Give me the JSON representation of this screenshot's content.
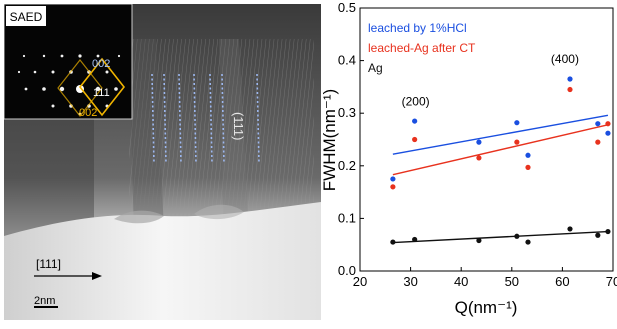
{
  "tem": {
    "saed_label": "SAED",
    "spot_top": "002",
    "spot_center": "111",
    "spot_bottom": "002",
    "plane_label": "(111)",
    "direction_label": "[111]",
    "scale_label": "2nm",
    "colors": {
      "saed_box": "#f0b400",
      "plane_lines": "#9db8f0",
      "spot_top": "#a9c4f5"
    }
  },
  "chart_data": {
    "type": "scatter",
    "xlabel": "Q(nm⁻¹)",
    "ylabel": "FWHM(nm⁻¹)",
    "xlim": [
      20,
      70
    ],
    "ylim": [
      0.0,
      0.5
    ],
    "xticks": [
      20,
      30,
      40,
      50,
      60,
      70
    ],
    "yticks": [
      0.0,
      0.1,
      0.2,
      0.3,
      0.4,
      0.5
    ],
    "ytick_labels": [
      "0.0",
      "0.1",
      "0.2",
      "0.3",
      "0.4",
      "0.5"
    ],
    "legend_position": "top-left",
    "grid": false,
    "series": [
      {
        "name": "leached by 1%HCl",
        "color": "#1a4fe0",
        "x": [
          26.5,
          30.8,
          43.5,
          51.0,
          53.2,
          61.5,
          67.0,
          69.0
        ],
        "y": [
          0.175,
          0.285,
          0.245,
          0.282,
          0.22,
          0.365,
          0.28,
          0.262
        ],
        "fit": [
          [
            26.5,
            0.222
          ],
          [
            69.0,
            0.296
          ]
        ]
      },
      {
        "name": "leached-Ag after CT",
        "color": "#e8321e",
        "x": [
          26.5,
          30.8,
          43.5,
          51.0,
          53.2,
          61.5,
          67.0,
          69.0
        ],
        "y": [
          0.16,
          0.25,
          0.215,
          0.245,
          0.197,
          0.345,
          0.245,
          0.28
        ],
        "fit": [
          [
            26.5,
            0.183
          ],
          [
            69.0,
            0.278
          ]
        ]
      },
      {
        "name": "Ag",
        "color": "#111111",
        "x": [
          26.5,
          30.8,
          43.5,
          51.0,
          53.2,
          61.5,
          67.0,
          69.0
        ],
        "y": [
          0.055,
          0.06,
          0.058,
          0.066,
          0.055,
          0.08,
          0.068,
          0.075
        ],
        "fit": [
          [
            26.5,
            0.054
          ],
          [
            69.0,
            0.075
          ]
        ]
      }
    ],
    "annotations": [
      {
        "text": "(200)",
        "x": 31.0,
        "y": 0.315
      },
      {
        "text": "(400)",
        "x": 60.5,
        "y": 0.395
      }
    ]
  }
}
